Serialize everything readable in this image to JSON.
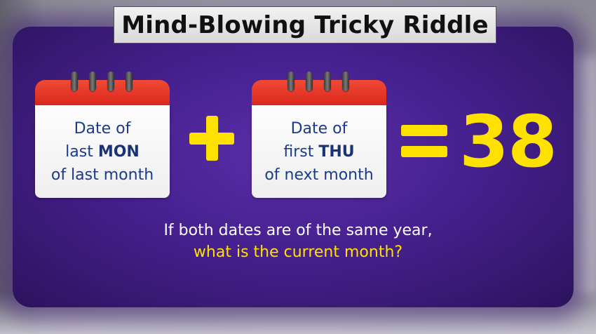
{
  "title": "Mind-Blowing Tricky Riddle",
  "calendar_left": {
    "line1": "Date of",
    "line2_prefix": "last ",
    "line2_strong": "MON",
    "line3": "of last month"
  },
  "operator_plus": "+",
  "calendar_right": {
    "line1": "Date of",
    "line2_prefix": "first ",
    "line2_strong": "THU",
    "line3": "of next month"
  },
  "operator_equals": "=",
  "result": "38",
  "question": {
    "line1": "If both dates are of the same year,",
    "line2": "what is the current month?"
  },
  "colors": {
    "accent_yellow": "#ffe100",
    "calendar_red": "#e0301f",
    "text_blue": "#1b3a8a",
    "panel_purple": "#46208f"
  },
  "icons": {
    "calendar": "calendar-icon",
    "plus": "plus-icon",
    "equals": "equals-icon"
  }
}
